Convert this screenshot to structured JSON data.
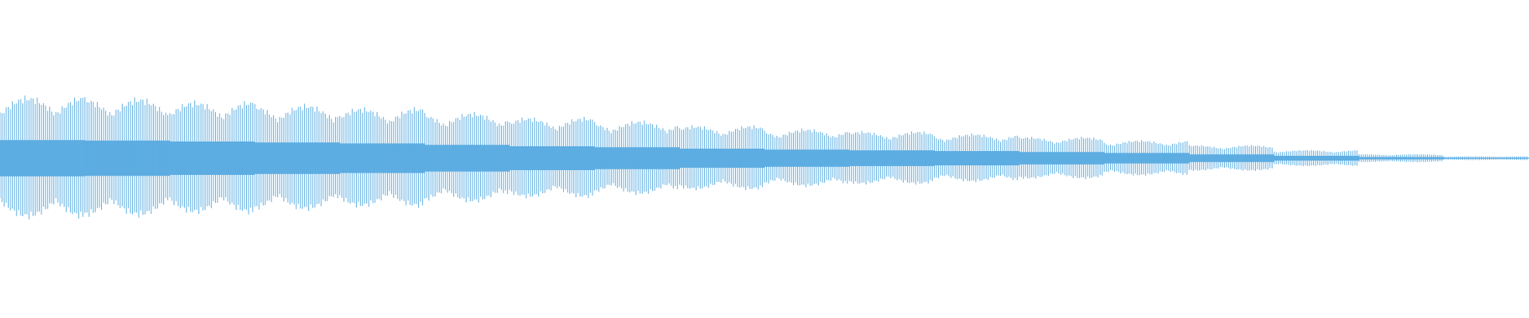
{
  "waveform": {
    "color": "#5dade2",
    "envelope": [
      0.38,
      0.37,
      0.35,
      0.33,
      0.31,
      0.28,
      0.25,
      0.23,
      0.2,
      0.18,
      0.165,
      0.15,
      0.13,
      0.11,
      0.08,
      0.05,
      0.025,
      0.012
    ]
  }
}
